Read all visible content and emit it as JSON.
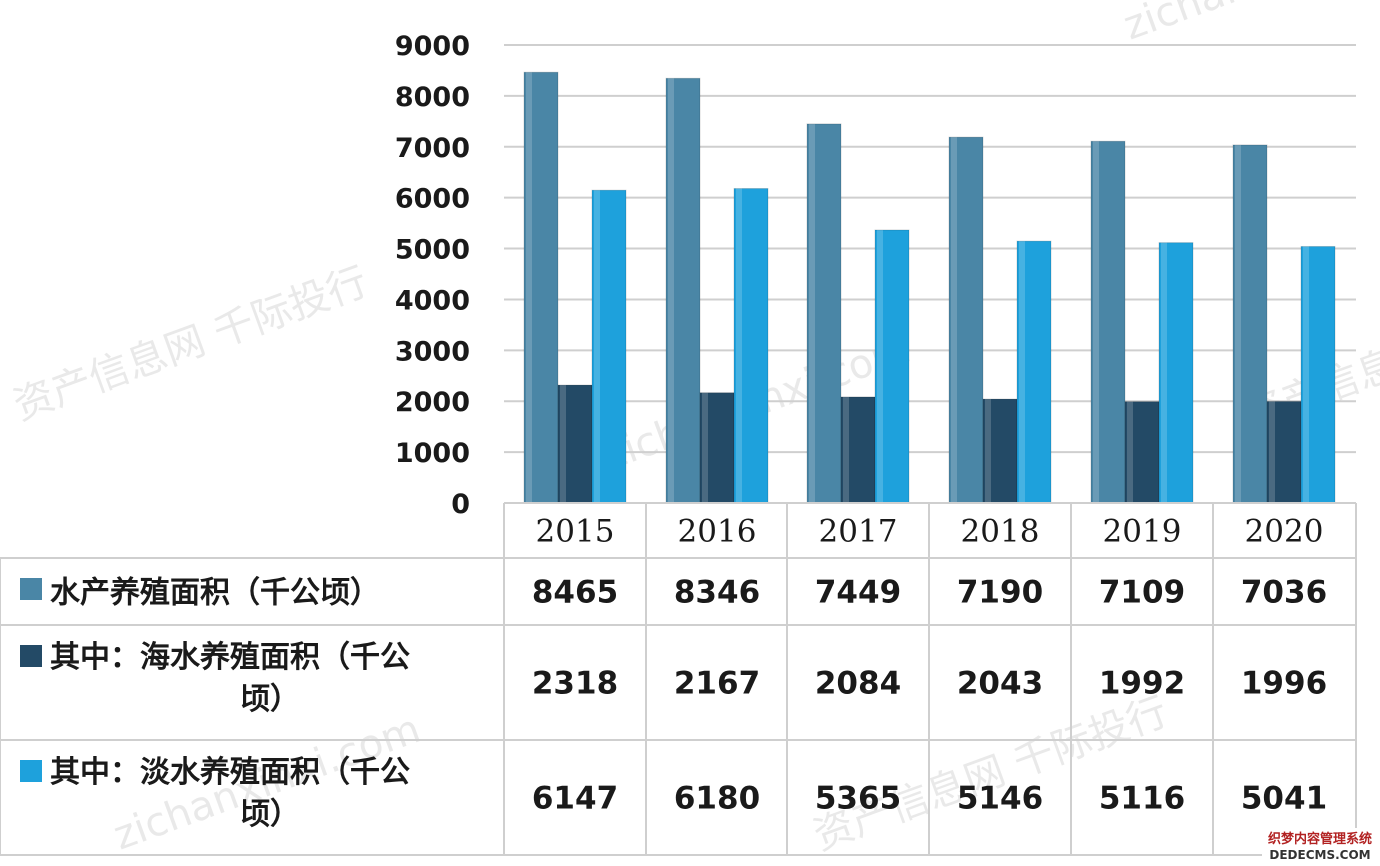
{
  "chart_data": {
    "type": "bar",
    "categories": [
      "2015",
      "2016",
      "2017",
      "2018",
      "2019",
      "2020"
    ],
    "series": [
      {
        "name": "水产养殖面积（千公顷）",
        "values": [
          8465,
          8346,
          7449,
          7190,
          7109,
          7036
        ],
        "color": "#4a86a6"
      },
      {
        "name": "其中：海水养殖面积（千公顷）",
        "values": [
          2318,
          2167,
          2084,
          2043,
          1992,
          1996
        ],
        "color": "#234a66"
      },
      {
        "name": "其中：淡水养殖面积（千公顷）",
        "values": [
          6147,
          6180,
          5365,
          5146,
          5116,
          5041
        ],
        "color": "#1ea1dc"
      }
    ],
    "yticks": [
      "0",
      "1000",
      "2000",
      "3000",
      "4000",
      "5000",
      "6000",
      "7000",
      "8000",
      "9000"
    ],
    "ylim": [
      0,
      9000
    ],
    "grid": true,
    "legend": "data-table-left",
    "data_table": true
  },
  "watermarks": [
    "zichanxinxi.com",
    "资产信息网 千际投行",
    "zichanxinxi.com",
    "资产信息网 千际投行",
    "zichanxinxi.com",
    "资产信息网 千际投行"
  ],
  "badge": {
    "line1": "织梦内容管理系统",
    "line2": "DEDECMS.COM"
  }
}
